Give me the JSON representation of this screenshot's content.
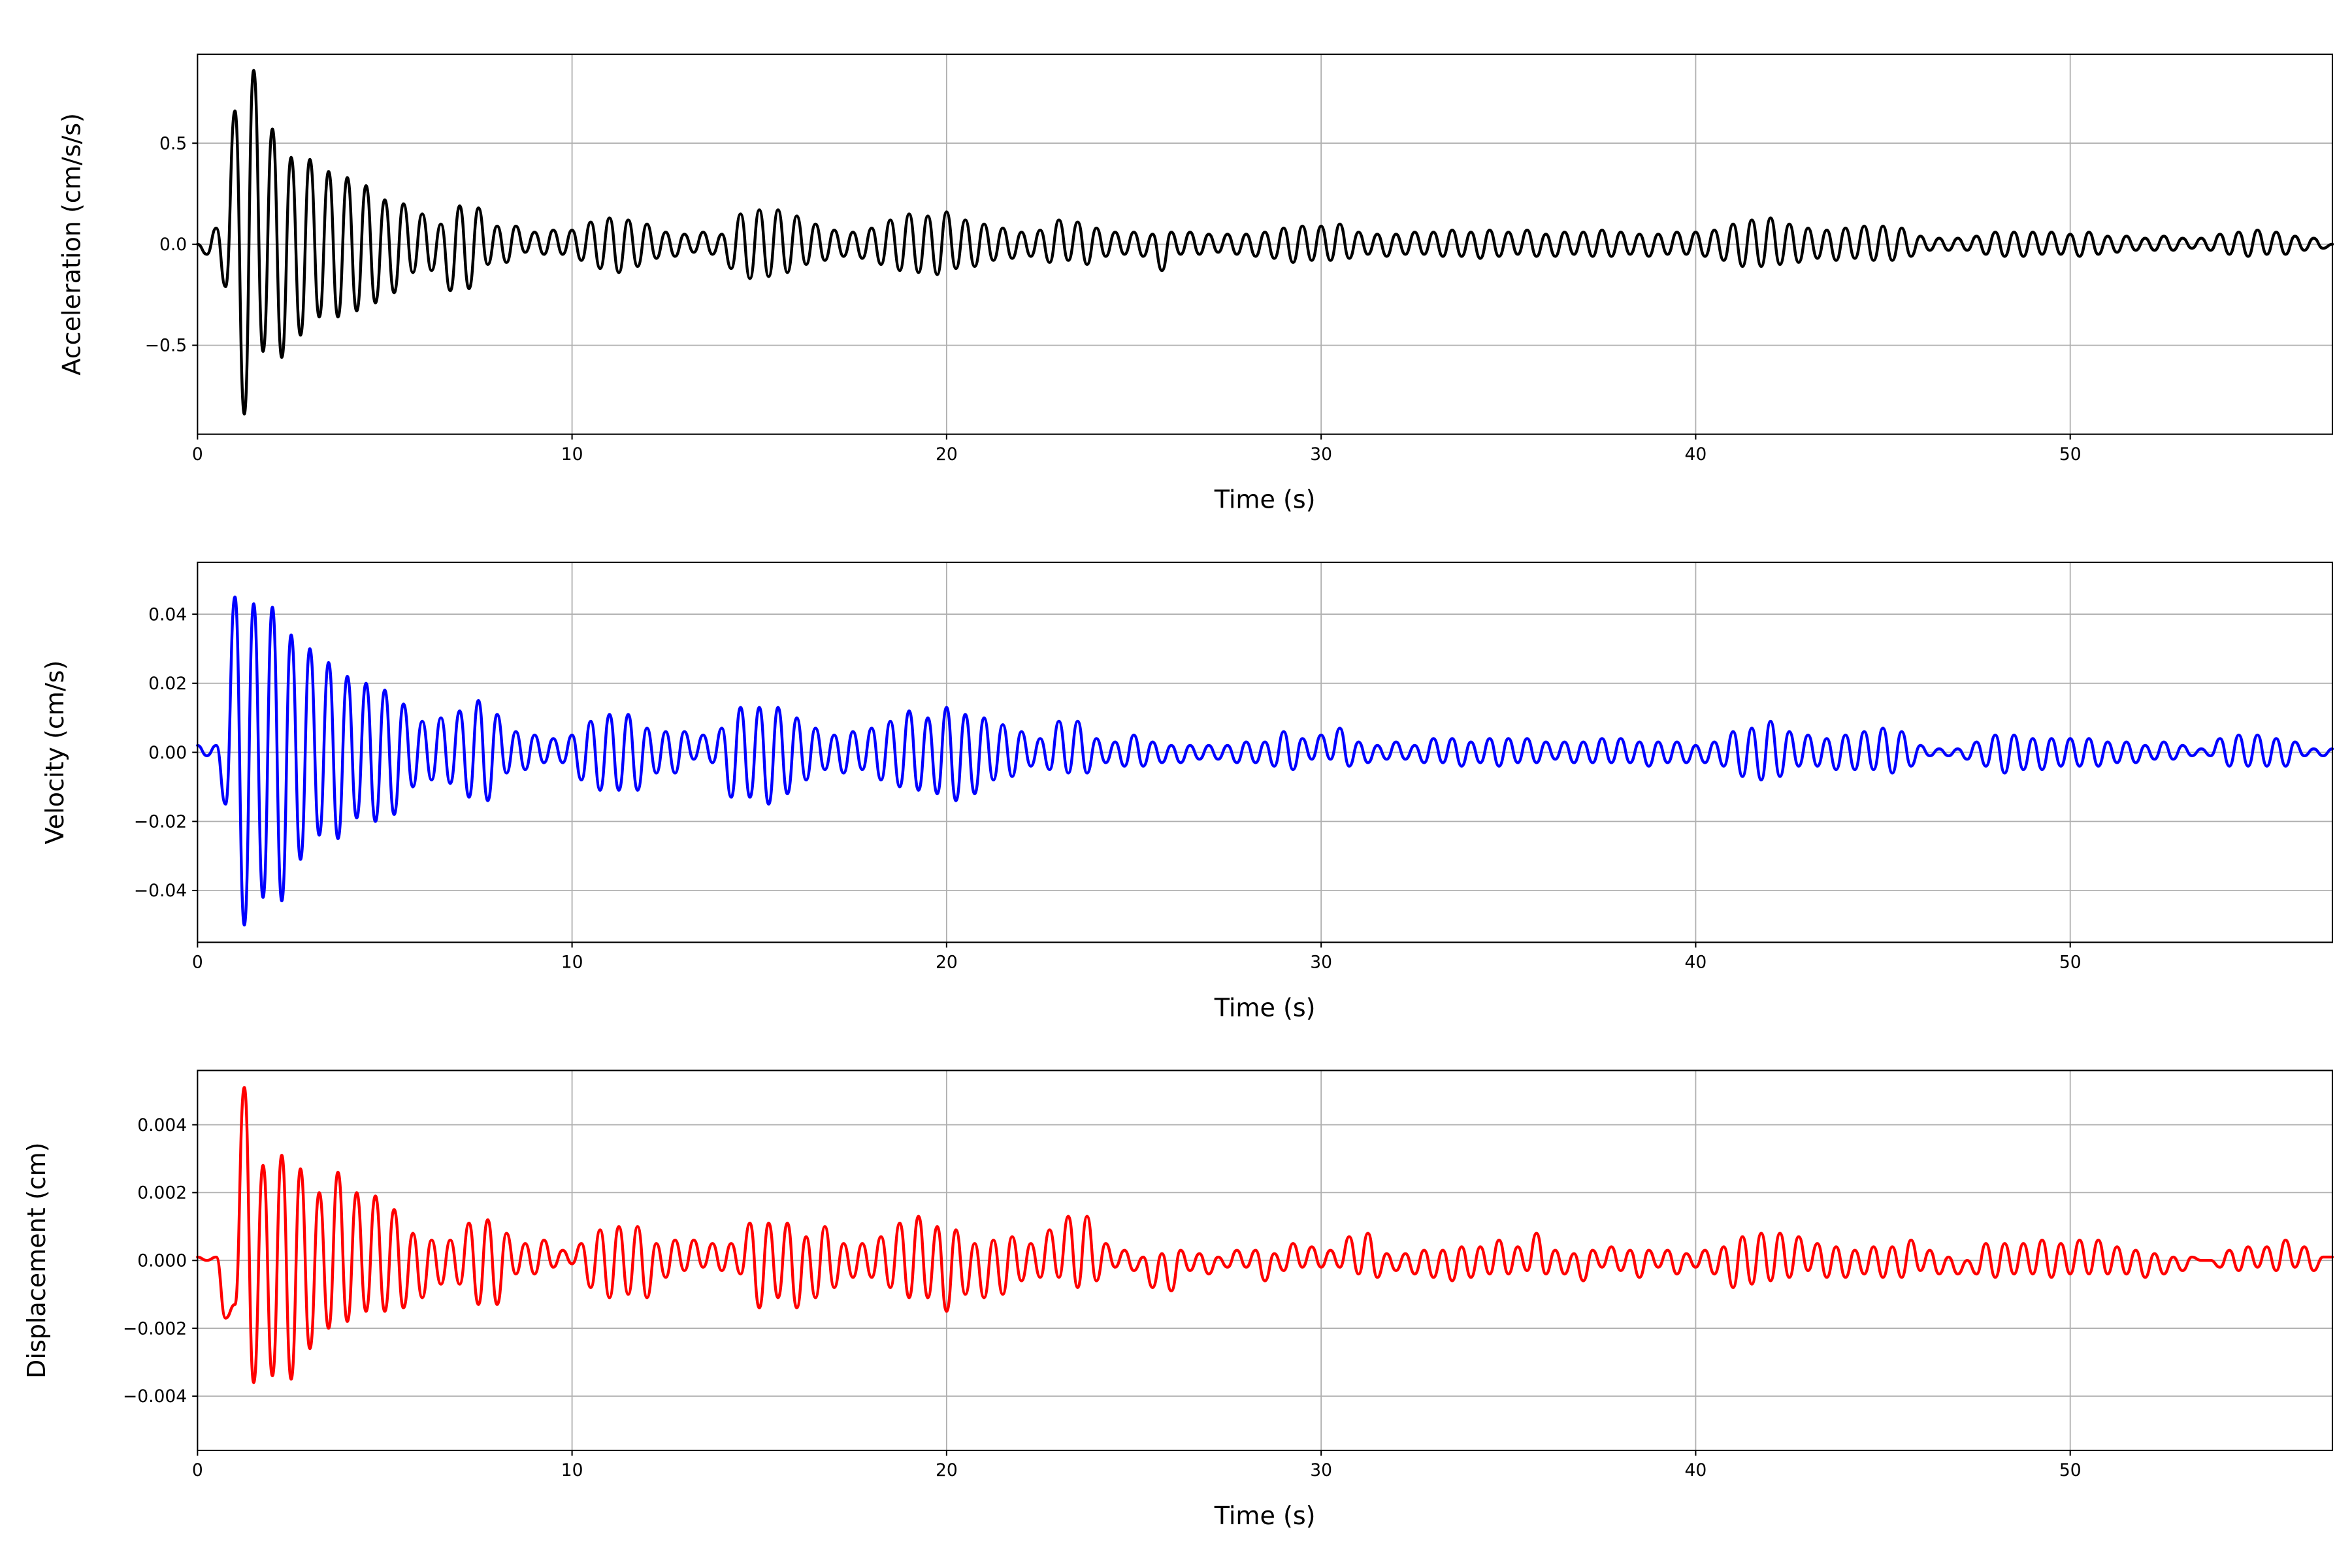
{
  "chart_data": [
    {
      "type": "line",
      "title": "",
      "xlabel": "Time (s)",
      "ylabel": "Acceleration (cm/s/s)",
      "xlim": [
        0,
        57
      ],
      "ylim": [
        -0.94,
        0.94
      ],
      "xticks": [
        0,
        10,
        20,
        30,
        40,
        50
      ],
      "xtick_labels": [
        "0",
        "10",
        "20",
        "30",
        "40",
        "50"
      ],
      "yticks": [
        -0.5,
        0.0,
        0.5
      ],
      "ytick_labels": [
        "−0.5",
        "0.0",
        "0.5"
      ],
      "grid": true,
      "series": [
        {
          "name": "Acceleration",
          "color": "#000000",
          "t_start": 0,
          "t_step": 0.25,
          "values": [
            0.0,
            -0.05,
            0.08,
            -0.21,
            0.66,
            -0.84,
            0.86,
            -0.53,
            0.57,
            -0.56,
            0.43,
            -0.45,
            0.42,
            -0.36,
            0.36,
            -0.36,
            0.33,
            -0.33,
            0.29,
            -0.29,
            0.22,
            -0.24,
            0.2,
            -0.14,
            0.15,
            -0.13,
            0.1,
            -0.23,
            0.19,
            -0.22,
            0.18,
            -0.1,
            0.09,
            -0.09,
            0.09,
            -0.04,
            0.06,
            -0.05,
            0.07,
            -0.05,
            0.07,
            -0.08,
            0.11,
            -0.12,
            0.13,
            -0.14,
            0.12,
            -0.11,
            0.1,
            -0.07,
            0.06,
            -0.06,
            0.05,
            -0.04,
            0.06,
            -0.05,
            0.05,
            -0.12,
            0.15,
            -0.17,
            0.17,
            -0.16,
            0.17,
            -0.14,
            0.14,
            -0.1,
            0.1,
            -0.08,
            0.07,
            -0.06,
            0.06,
            -0.07,
            0.08,
            -0.1,
            0.12,
            -0.13,
            0.15,
            -0.14,
            0.14,
            -0.15,
            0.16,
            -0.12,
            0.12,
            -0.11,
            0.1,
            -0.08,
            0.08,
            -0.07,
            0.06,
            -0.06,
            0.07,
            -0.09,
            0.12,
            -0.08,
            0.11,
            -0.1,
            0.08,
            -0.06,
            0.06,
            -0.05,
            0.06,
            -0.06,
            0.05,
            -0.13,
            0.06,
            -0.05,
            0.06,
            -0.05,
            0.05,
            -0.04,
            0.05,
            -0.05,
            0.05,
            -0.06,
            0.06,
            -0.07,
            0.08,
            -0.09,
            0.09,
            -0.08,
            0.09,
            -0.08,
            0.1,
            -0.07,
            0.06,
            -0.05,
            0.05,
            -0.06,
            0.05,
            -0.05,
            0.06,
            -0.05,
            0.06,
            -0.06,
            0.07,
            -0.06,
            0.06,
            -0.07,
            0.07,
            -0.06,
            0.06,
            -0.05,
            0.07,
            -0.06,
            0.05,
            -0.06,
            0.06,
            -0.05,
            0.06,
            -0.06,
            0.07,
            -0.06,
            0.06,
            -0.05,
            0.05,
            -0.06,
            0.05,
            -0.05,
            0.06,
            -0.05,
            0.06,
            -0.06,
            0.07,
            -0.08,
            0.1,
            -0.11,
            0.12,
            -0.11,
            0.13,
            -0.1,
            0.1,
            -0.09,
            0.08,
            -0.07,
            0.07,
            -0.08,
            0.08,
            -0.07,
            0.09,
            -0.08,
            0.09,
            -0.08,
            0.08,
            -0.06,
            0.04,
            -0.03,
            0.03,
            -0.03,
            0.03,
            -0.03,
            0.04,
            -0.05,
            0.06,
            -0.06,
            0.06,
            -0.06,
            0.06,
            -0.05,
            0.06,
            -0.05,
            0.05,
            -0.06,
            0.06,
            -0.05,
            0.04,
            -0.04,
            0.04,
            -0.03,
            0.03,
            -0.03,
            0.04,
            -0.03,
            0.03,
            -0.02,
            0.03,
            -0.03,
            0.05,
            -0.05,
            0.06,
            -0.06,
            0.07,
            -0.05,
            0.06,
            -0.05,
            0.04,
            -0.03,
            0.03,
            -0.02,
            0.0
          ]
        }
      ]
    },
    {
      "type": "line",
      "title": "",
      "xlabel": "Time (s)",
      "ylabel": "Velocity (cm/s)",
      "xlim": [
        0,
        57
      ],
      "ylim": [
        -0.055,
        0.055
      ],
      "xticks": [
        0,
        10,
        20,
        30,
        40,
        50
      ],
      "xtick_labels": [
        "0",
        "10",
        "20",
        "30",
        "40",
        "50"
      ],
      "yticks": [
        -0.04,
        -0.02,
        0.0,
        0.02,
        0.04
      ],
      "ytick_labels": [
        "−0.04",
        "−0.02",
        "0.00",
        "0.02",
        "0.04"
      ],
      "grid": true,
      "series": [
        {
          "name": "Velocity",
          "color": "#0000ff",
          "t_start": 0,
          "t_step": 0.25,
          "values": [
            0.002,
            -0.001,
            0.002,
            -0.015,
            0.045,
            -0.05,
            0.043,
            -0.042,
            0.042,
            -0.043,
            0.034,
            -0.031,
            0.03,
            -0.024,
            0.026,
            -0.025,
            0.022,
            -0.019,
            0.02,
            -0.02,
            0.018,
            -0.018,
            0.014,
            -0.01,
            0.009,
            -0.008,
            0.01,
            -0.009,
            0.012,
            -0.013,
            0.015,
            -0.014,
            0.011,
            -0.006,
            0.006,
            -0.005,
            0.005,
            -0.003,
            0.004,
            -0.003,
            0.005,
            -0.008,
            0.009,
            -0.011,
            0.011,
            -0.011,
            0.011,
            -0.011,
            0.007,
            -0.006,
            0.006,
            -0.006,
            0.006,
            -0.002,
            0.005,
            -0.003,
            0.007,
            -0.013,
            0.013,
            -0.013,
            0.013,
            -0.015,
            0.013,
            -0.012,
            0.01,
            -0.008,
            0.007,
            -0.005,
            0.005,
            -0.006,
            0.006,
            -0.005,
            0.007,
            -0.008,
            0.009,
            -0.01,
            0.012,
            -0.011,
            0.01,
            -0.012,
            0.013,
            -0.014,
            0.011,
            -0.012,
            0.01,
            -0.008,
            0.008,
            -0.007,
            0.006,
            -0.004,
            0.004,
            -0.005,
            0.009,
            -0.006,
            0.009,
            -0.006,
            0.004,
            -0.003,
            0.003,
            -0.004,
            0.005,
            -0.004,
            0.003,
            -0.003,
            0.002,
            -0.003,
            0.002,
            -0.002,
            0.002,
            -0.002,
            0.002,
            -0.003,
            0.003,
            -0.003,
            0.003,
            -0.004,
            0.006,
            -0.005,
            0.004,
            -0.002,
            0.005,
            -0.002,
            0.007,
            -0.004,
            0.003,
            -0.003,
            0.002,
            -0.002,
            0.003,
            -0.002,
            0.002,
            -0.003,
            0.004,
            -0.003,
            0.004,
            -0.004,
            0.003,
            -0.003,
            0.004,
            -0.004,
            0.004,
            -0.003,
            0.004,
            -0.003,
            0.003,
            -0.002,
            0.003,
            -0.003,
            0.003,
            -0.003,
            0.004,
            -0.003,
            0.004,
            -0.003,
            0.003,
            -0.004,
            0.003,
            -0.003,
            0.003,
            -0.003,
            0.002,
            -0.003,
            0.003,
            -0.004,
            0.006,
            -0.007,
            0.007,
            -0.008,
            0.009,
            -0.007,
            0.006,
            -0.004,
            0.005,
            -0.004,
            0.004,
            -0.005,
            0.005,
            -0.005,
            0.006,
            -0.005,
            0.007,
            -0.006,
            0.006,
            -0.004,
            0.002,
            -0.001,
            0.001,
            -0.001,
            0.001,
            -0.002,
            0.003,
            -0.004,
            0.005,
            -0.006,
            0.005,
            -0.005,
            0.004,
            -0.005,
            0.004,
            -0.004,
            0.004,
            -0.004,
            0.004,
            -0.004,
            0.003,
            -0.003,
            0.003,
            -0.003,
            0.002,
            -0.002,
            0.003,
            -0.002,
            0.002,
            -0.001,
            0.001,
            -0.001,
            0.004,
            -0.004,
            0.005,
            -0.004,
            0.005,
            -0.004,
            0.004,
            -0.004,
            0.003,
            -0.001,
            0.001,
            -0.001,
            0.001
          ]
        }
      ]
    },
    {
      "type": "line",
      "title": "",
      "xlabel": "Time (s)",
      "ylabel": "Displacement (cm)",
      "xlim": [
        0,
        57
      ],
      "ylim": [
        -0.0056,
        0.0056
      ],
      "xticks": [
        0,
        10,
        20,
        30,
        40,
        50
      ],
      "xtick_labels": [
        "0",
        "10",
        "20",
        "30",
        "40",
        "50"
      ],
      "yticks": [
        -0.004,
        -0.002,
        0.0,
        0.002,
        0.004
      ],
      "ytick_labels": [
        "−0.004",
        "−0.002",
        "0.000",
        "0.002",
        "0.004"
      ],
      "grid": true,
      "series": [
        {
          "name": "Displacement",
          "color": "#ff0000",
          "t_start": 0,
          "t_step": 0.25,
          "values": [
            0.0001,
            0.0,
            0.0001,
            -0.0017,
            -0.0013,
            0.0051,
            -0.0036,
            0.0028,
            -0.0034,
            0.0031,
            -0.0035,
            0.0027,
            -0.0026,
            0.002,
            -0.002,
            0.0026,
            -0.0018,
            0.002,
            -0.0015,
            0.0019,
            -0.0015,
            0.0015,
            -0.0014,
            0.0008,
            -0.0011,
            0.0006,
            -0.0007,
            0.0006,
            -0.0007,
            0.0011,
            -0.0013,
            0.0012,
            -0.0013,
            0.0008,
            -0.0004,
            0.0005,
            -0.0004,
            0.0006,
            -0.0002,
            0.0003,
            -0.0001,
            0.0005,
            -0.0008,
            0.0009,
            -0.0011,
            0.001,
            -0.001,
            0.001,
            -0.0011,
            0.0005,
            -0.0005,
            0.0006,
            -0.0003,
            0.0006,
            -0.0002,
            0.0005,
            -0.0003,
            0.0005,
            -0.0004,
            0.0011,
            -0.0014,
            0.0011,
            -0.0011,
            0.0011,
            -0.0014,
            0.0007,
            -0.0011,
            0.001,
            -0.0008,
            0.0005,
            -0.0005,
            0.0005,
            -0.0005,
            0.0007,
            -0.0008,
            0.0011,
            -0.0011,
            0.0013,
            -0.0011,
            0.001,
            -0.0015,
            0.0009,
            -0.001,
            0.0005,
            -0.0011,
            0.0006,
            -0.001,
            0.0007,
            -0.0006,
            0.0005,
            -0.0005,
            0.0009,
            -0.0005,
            0.0013,
            -0.0008,
            0.0013,
            -0.0006,
            0.0005,
            -0.0002,
            0.0003,
            -0.0003,
            0.0001,
            -0.0008,
            0.0002,
            -0.0009,
            0.0003,
            -0.0003,
            0.0002,
            -0.0004,
            0.0001,
            -0.0002,
            0.0003,
            -0.0002,
            0.0003,
            -0.0006,
            0.0002,
            -0.0003,
            0.0005,
            -0.0002,
            0.0004,
            -0.0002,
            0.0003,
            -0.0002,
            0.0007,
            -0.0004,
            0.0008,
            -0.0005,
            0.0002,
            -0.0003,
            0.0002,
            -0.0004,
            0.0003,
            -0.0005,
            0.0003,
            -0.0006,
            0.0004,
            -0.0005,
            0.0004,
            -0.0004,
            0.0006,
            -0.0004,
            0.0004,
            -0.0003,
            0.0008,
            -0.0004,
            0.0003,
            -0.0004,
            0.0002,
            -0.0006,
            0.0003,
            -0.0002,
            0.0004,
            -0.0003,
            0.0003,
            -0.0005,
            0.0003,
            -0.0002,
            0.0003,
            -0.0004,
            0.0002,
            -0.0002,
            0.0003,
            -0.0004,
            0.0004,
            -0.0008,
            0.0007,
            -0.0007,
            0.0008,
            -0.0006,
            0.0008,
            -0.0005,
            0.0007,
            -0.0003,
            0.0005,
            -0.0005,
            0.0004,
            -0.0005,
            0.0003,
            -0.0004,
            0.0004,
            -0.0005,
            0.0004,
            -0.0005,
            0.0006,
            -0.0003,
            0.0003,
            -0.0004,
            0.0001,
            -0.0004,
            0.0,
            -0.0004,
            0.0005,
            -0.0005,
            0.0005,
            -0.0004,
            0.0005,
            -0.0004,
            0.0006,
            -0.0005,
            0.0005,
            -0.0004,
            0.0006,
            -0.0004,
            0.0006,
            -0.0004,
            0.0004,
            -0.0004,
            0.0003,
            -0.0005,
            0.0002,
            -0.0004,
            0.0001,
            -0.0003,
            0.0001,
            0.0,
            0.0,
            -0.0002,
            0.0003,
            -0.0003,
            0.0004,
            -0.0002,
            0.0004,
            -0.0003,
            0.0006,
            -0.0002,
            0.0004,
            -0.0003,
            0.0001,
            0.0001
          ]
        }
      ]
    }
  ]
}
